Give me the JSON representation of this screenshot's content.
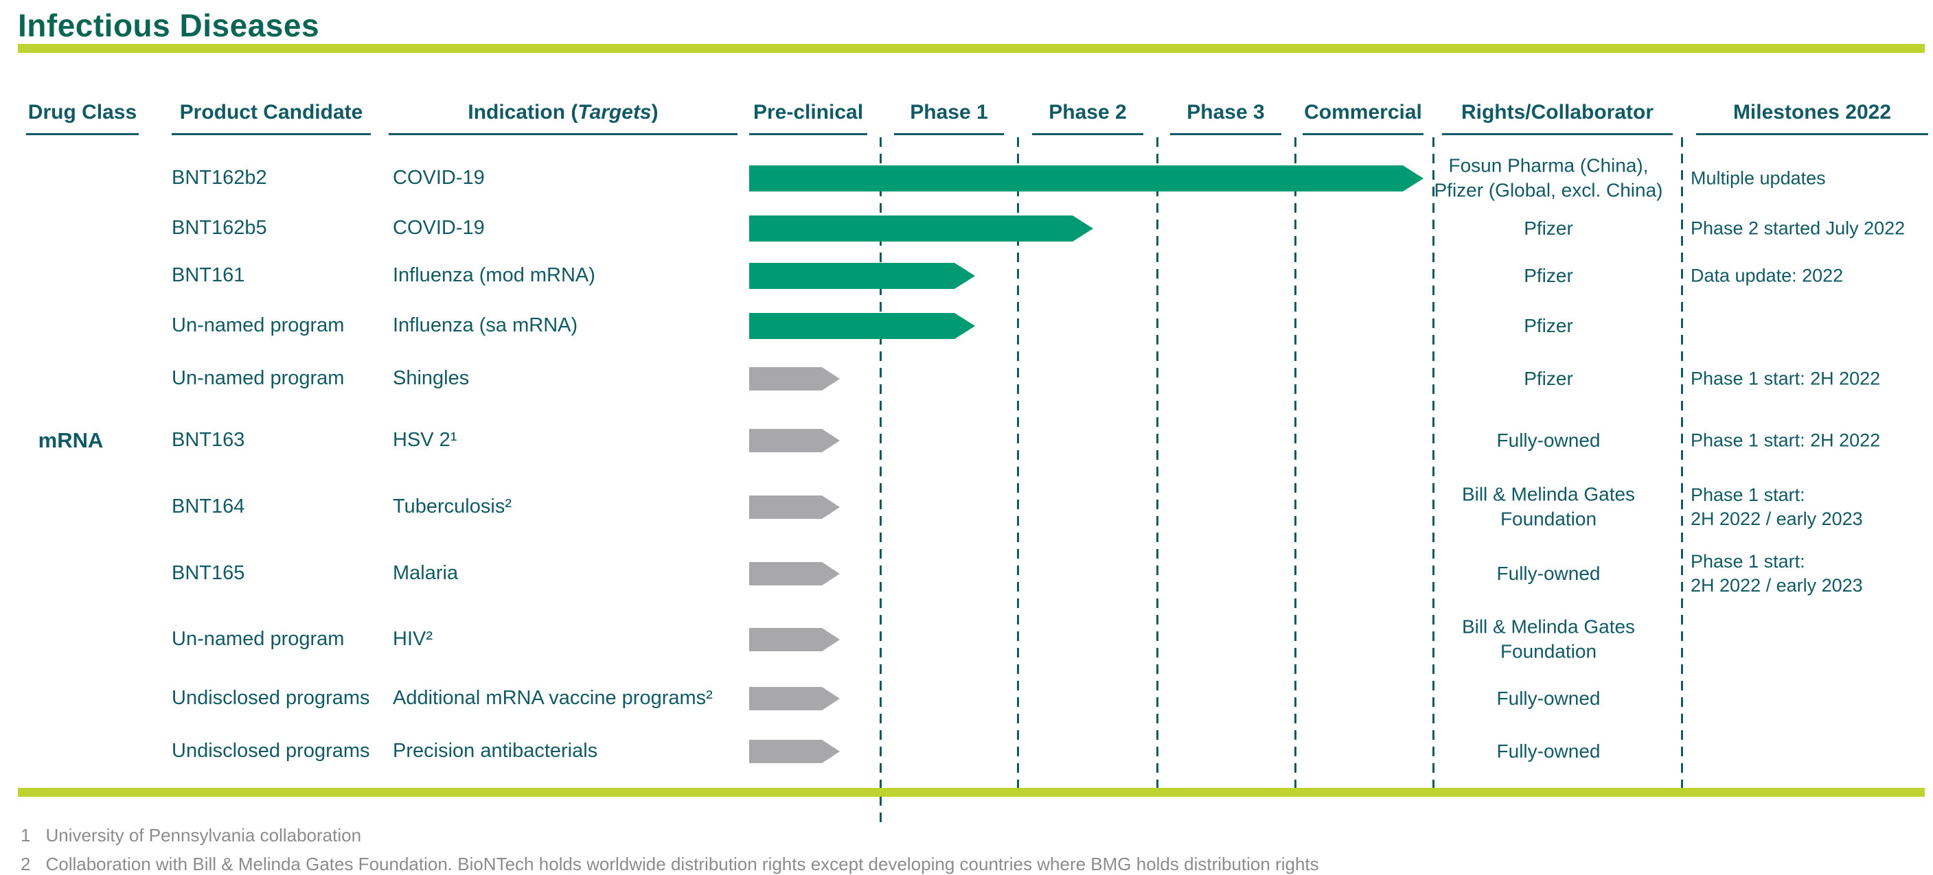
{
  "title": "Infectious Diseases",
  "columns": {
    "drug_class": "Drug Class",
    "product": "Product Candidate",
    "indication_prefix": "Indication (",
    "indication_italic": "Targets",
    "indication_suffix": ")",
    "phases": [
      "Pre-clinical",
      "Phase 1",
      "Phase 2",
      "Phase 3",
      "Commercial"
    ],
    "rights": "Rights/Collaborator",
    "milestones": "Milestones 2022"
  },
  "drug_class_label": "mRNA",
  "rows": [
    {
      "product": "BNT162b2",
      "indication": "COVID-19",
      "progress": 4.92,
      "bar_color": "green",
      "rights": "Fosun Pharma (China),\nPfizer (Global, excl. China)",
      "milestone": "Multiple updates"
    },
    {
      "product": "BNT162b5",
      "indication": "COVID-19",
      "progress": 2.51,
      "bar_color": "green",
      "rights": "Pfizer",
      "milestone": "Phase 2 started July 2022"
    },
    {
      "product": "BNT161",
      "indication": "Influenza (mod mRNA)",
      "progress": 1.65,
      "bar_color": "green",
      "rights": "Pfizer",
      "milestone": "Data update: 2022"
    },
    {
      "product": "Un-named program",
      "indication": "Influenza (sa mRNA)",
      "progress": 1.65,
      "bar_color": "green",
      "rights": "Pfizer",
      "milestone": ""
    },
    {
      "product": "Un-named program",
      "indication": "Shingles",
      "progress": 0.66,
      "bar_color": "gray",
      "rights": "Pfizer",
      "milestone": "Phase 1 start: 2H 2022"
    },
    {
      "product": "BNT163",
      "indication": "HSV 2¹",
      "progress": 0.66,
      "bar_color": "gray",
      "rights": "Fully-owned",
      "milestone": "Phase 1 start: 2H 2022"
    },
    {
      "product": "BNT164",
      "indication": "Tuberculosis²",
      "progress": 0.66,
      "bar_color": "gray",
      "rights": "Bill & Melinda Gates\nFoundation",
      "milestone": "Phase 1 start:\n2H 2022 / early 2023"
    },
    {
      "product": "BNT165",
      "indication": "Malaria",
      "progress": 0.66,
      "bar_color": "gray",
      "rights": "Fully-owned",
      "milestone": "Phase 1 start:\n2H 2022 / early 2023"
    },
    {
      "product": "Un-named program",
      "indication": "HIV²",
      "progress": 0.66,
      "bar_color": "gray",
      "rights": "Bill & Melinda Gates\nFoundation",
      "milestone": ""
    },
    {
      "product": "Undisclosed programs",
      "indication": "Additional mRNA vaccine programs²",
      "progress": 0.66,
      "bar_color": "gray",
      "rights": "Fully-owned",
      "milestone": ""
    },
    {
      "product": "Undisclosed programs",
      "indication": "Precision antibacterials",
      "progress": 0.66,
      "bar_color": "gray",
      "rights": "Fully-owned",
      "milestone": ""
    }
  ],
  "footnotes": [
    {
      "num": "1",
      "text": "University of Pennsylvania collaboration"
    },
    {
      "num": "2",
      "text": "Collaboration with Bill & Melinda Gates Foundation. BioNTech holds worldwide distribution rights except developing countries where BMG holds distribution rights"
    }
  ],
  "colors": {
    "title_teal": "#0a6554",
    "text_teal": "#115a64",
    "accent_lime": "#bfd330",
    "bar_green": "#009b72",
    "bar_gray": "#a8a8aa",
    "footnote_gray": "#8c8c8c"
  }
}
